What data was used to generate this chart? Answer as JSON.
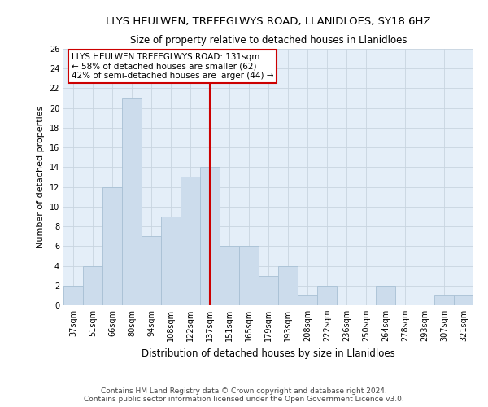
{
  "title": "LLYS HEULWEN, TREFEGLWYS ROAD, LLANIDLOES, SY18 6HZ",
  "subtitle": "Size of property relative to detached houses in Llanidloes",
  "xlabel": "Distribution of detached houses by size in Llanidloes",
  "ylabel": "Number of detached properties",
  "categories": [
    "37sqm",
    "51sqm",
    "66sqm",
    "80sqm",
    "94sqm",
    "108sqm",
    "122sqm",
    "137sqm",
    "151sqm",
    "165sqm",
    "179sqm",
    "193sqm",
    "208sqm",
    "222sqm",
    "236sqm",
    "250sqm",
    "264sqm",
    "278sqm",
    "293sqm",
    "307sqm",
    "321sqm"
  ],
  "values": [
    2,
    4,
    12,
    21,
    7,
    9,
    13,
    14,
    6,
    6,
    3,
    4,
    1,
    2,
    0,
    0,
    2,
    0,
    0,
    1,
    1
  ],
  "bar_color": "#ccdcec",
  "bar_edge_color": "#a8c0d4",
  "vline_x_index": 7,
  "vline_color": "#cc0000",
  "annotation_text": "LLYS HEULWEN TREFEGLWYS ROAD: 131sqm\n← 58% of detached houses are smaller (62)\n42% of semi-detached houses are larger (44) →",
  "annotation_box_color": "#ffffff",
  "annotation_box_edge": "#cc0000",
  "ylim": [
    0,
    26
  ],
  "yticks": [
    0,
    2,
    4,
    6,
    8,
    10,
    12,
    14,
    16,
    18,
    20,
    22,
    24,
    26
  ],
  "grid_color": "#c8d4e0",
  "bg_color": "#e4eef8",
  "footer_line1": "Contains HM Land Registry data © Crown copyright and database right 2024.",
  "footer_line2": "Contains public sector information licensed under the Open Government Licence v3.0.",
  "title_fontsize": 9.5,
  "subtitle_fontsize": 8.5,
  "tick_fontsize": 7,
  "ylabel_fontsize": 8,
  "xlabel_fontsize": 8.5,
  "annot_fontsize": 7.5,
  "footer_fontsize": 6.5
}
